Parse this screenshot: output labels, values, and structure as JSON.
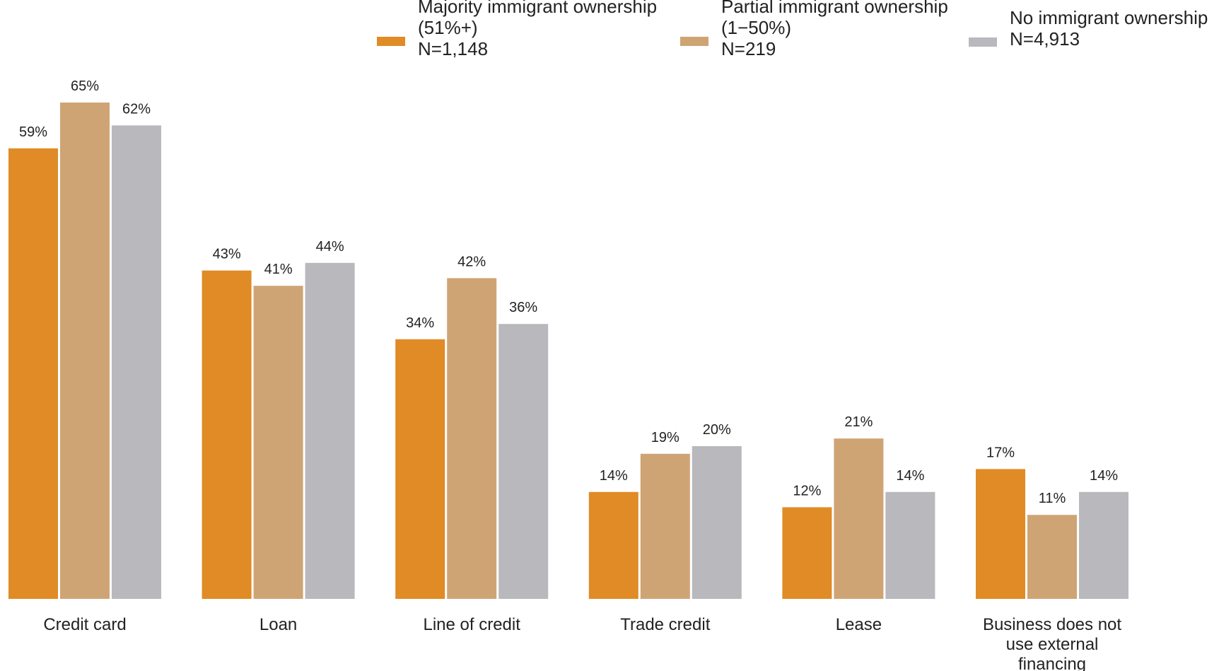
{
  "chart_data": {
    "type": "bar",
    "title": "",
    "xlabel": "",
    "ylabel": "",
    "ylim": [
      0,
      70
    ],
    "grid": false,
    "legend_position": "top-right",
    "value_suffix": "%",
    "categories": [
      [
        "Credit card"
      ],
      [
        "Loan"
      ],
      [
        "Line of credit"
      ],
      [
        "Trade credit"
      ],
      [
        "Lease"
      ],
      [
        "Business does not",
        "use external",
        "financing"
      ]
    ],
    "series": [
      {
        "name": [
          "Majority immigrant ownership",
          "(51%+)",
          "N=1,148"
        ],
        "color": "#E08B25",
        "values": [
          59,
          43,
          34,
          14,
          12,
          17
        ]
      },
      {
        "name": [
          "Partial immigrant ownership",
          "(1−50%)",
          "N=219"
        ],
        "color": "#CFA474",
        "values": [
          65,
          41,
          42,
          19,
          21,
          11
        ]
      },
      {
        "name": [
          "No immigrant ownership",
          "N=4,913"
        ],
        "color": "#B8B8BD",
        "values": [
          62,
          44,
          36,
          20,
          14,
          14
        ]
      }
    ]
  }
}
